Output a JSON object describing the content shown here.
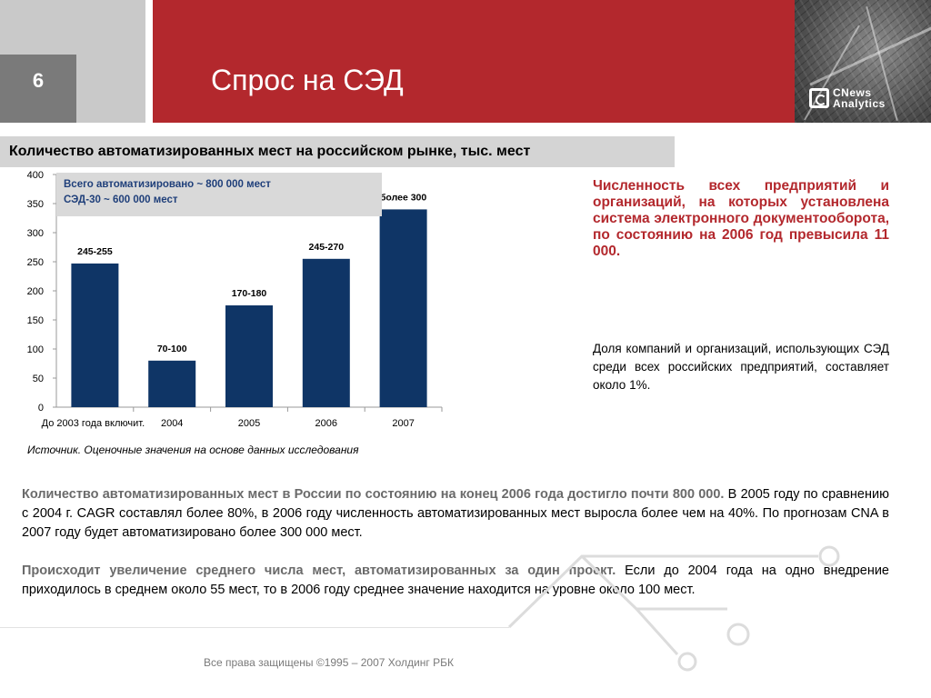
{
  "slide": {
    "number": "6",
    "title": "Спрос на СЭД",
    "logo_line1": "CNews",
    "logo_line2": "Analytics",
    "subtitle": "Количество автоматизированных мест на российском рынке, тыс. мест"
  },
  "chart_data": {
    "type": "bar",
    "title": "Количество автоматизированных мест на российском рынке, тыс. мест",
    "categories": [
      "До 2003 года включит.",
      "2004",
      "2005",
      "2006",
      "2007"
    ],
    "values": [
      247,
      80,
      175,
      255,
      340
    ],
    "data_labels": [
      "245-255",
      "70-100",
      "170-180",
      "245-270",
      "более 300"
    ],
    "ylim": [
      0,
      400
    ],
    "yticks": [
      0,
      50,
      100,
      150,
      200,
      250,
      300,
      350,
      400
    ],
    "grid": false,
    "bar_color": "#0f3566",
    "annotation": [
      "Всего автоматизировано  ~ 800 000 мест",
      "СЭД-30 ~ 600 000 мест"
    ]
  },
  "source_note": "Источник. Оценочные значения на основе данных исследования",
  "right": {
    "highlight": "Численность всех предприятий и организаций, на которых установлена система электронного документооборота, по состоянию на 2006 год превысила 11 000.",
    "note": "Доля компаний и организаций, использующих СЭД среди всех российских предприятий, составляет около 1%."
  },
  "paragraphs": [
    {
      "lead": "Количество автоматизированных мест в России по состоянию на конец 2006 года достигло почти 800 000.",
      "body": " В 2005 году по сравнению с 2004 г. CAGR составлял более 80%, в 2006 году численность автоматизированных мест выросла более чем на 40%. По прогнозам CNA в 2007 году будет автоматизировано более 300 000 мест."
    },
    {
      "lead": "Происходит увеличение среднего числа мест, автоматизированных за один проект.",
      "body": " Если до 2004 года на одно внедрение приходилось в среднем около 55 мест, то в 2006 году среднее значение находится на уровне около 100 мест."
    }
  ],
  "footer": "Все права защищены ©1995 – 2007 Холдинг РБК",
  "colors": {
    "accent_red": "#b3282d",
    "bar": "#0f3566",
    "grey": "#c9c9c9"
  }
}
